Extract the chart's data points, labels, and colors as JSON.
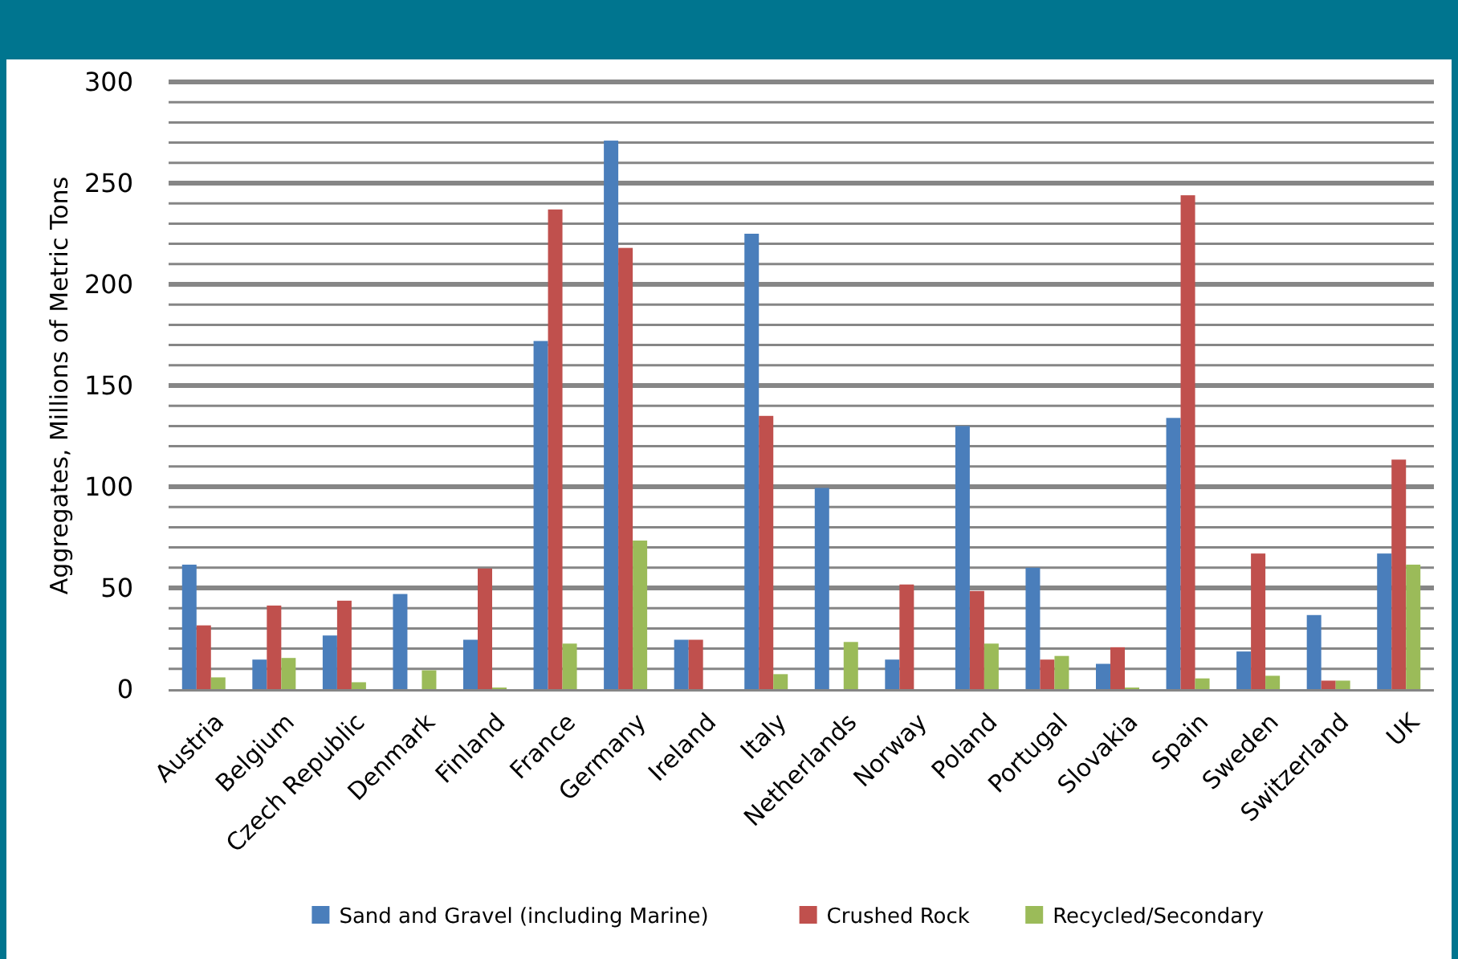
{
  "chart_data": {
    "type": "bar",
    "ylabel": "Aggregates, Millions of Metric Tons",
    "categories": [
      "Austria",
      "Belgium",
      "Czech Republic",
      "Denmark",
      "Finland",
      "France",
      "Germany",
      "Ireland",
      "Italy",
      "Netherlands",
      "Norway",
      "Poland",
      "Portugal",
      "Slovakia",
      "Spain",
      "Sweden",
      "Switzerland",
      "UK"
    ],
    "series": [
      {
        "name": "Sand and Gravel (including Marine)",
        "color": "#4a7ebb",
        "values": [
          61.5,
          14.6,
          26.5,
          47,
          24.4,
          172,
          271,
          24.4,
          225,
          99.4,
          14.6,
          130,
          60,
          12.5,
          134,
          18.6,
          36.6,
          67
        ]
      },
      {
        "name": "Crushed Rock",
        "color": "#c0504d",
        "values": [
          31.5,
          41.3,
          43.7,
          0,
          59.6,
          237,
          218,
          24.4,
          135,
          0,
          51.7,
          48.5,
          14.6,
          20.7,
          244,
          67,
          4.2,
          113.4
        ]
      },
      {
        "name": "Recycled/Secondary",
        "color": "#9bbb59",
        "values": [
          5.8,
          15.4,
          3.4,
          9.3,
          0.8,
          22.5,
          73.4,
          0,
          7.4,
          23.3,
          0,
          22.5,
          16.4,
          0.8,
          5.3,
          6.6,
          4.2,
          61.5
        ]
      }
    ],
    "ylim": [
      0,
      300
    ],
    "yticks": [
      0,
      {
        "value": 10,
        "label": null
      },
      {
        "value": 20,
        "label": null
      },
      {
        "value": 30,
        "label": null
      },
      {
        "value": 40,
        "label": null
      },
      50,
      {
        "value": 60,
        "label": null
      },
      {
        "value": 70,
        "label": null
      },
      {
        "value": 80,
        "label": null
      },
      {
        "value": 90,
        "label": null
      },
      100,
      {
        "value": 110,
        "label": null
      },
      {
        "value": 120,
        "label": null
      },
      {
        "value": 130,
        "label": null
      },
      {
        "value": 140,
        "label": null
      },
      150,
      {
        "value": 160,
        "label": null
      },
      {
        "value": 170,
        "label": null
      },
      {
        "value": 180,
        "label": null
      },
      {
        "value": 190,
        "label": null
      },
      200,
      {
        "value": 210,
        "label": null
      },
      {
        "value": 220,
        "label": null
      },
      {
        "value": 230,
        "label": null
      },
      {
        "value": 240,
        "label": null
      },
      250,
      {
        "value": 260,
        "label": null
      },
      {
        "value": 270,
        "label": null
      },
      {
        "value": 280,
        "label": null
      },
      {
        "value": 290,
        "label": null
      },
      300
    ],
    "grid": "y",
    "legend": "bottom"
  }
}
